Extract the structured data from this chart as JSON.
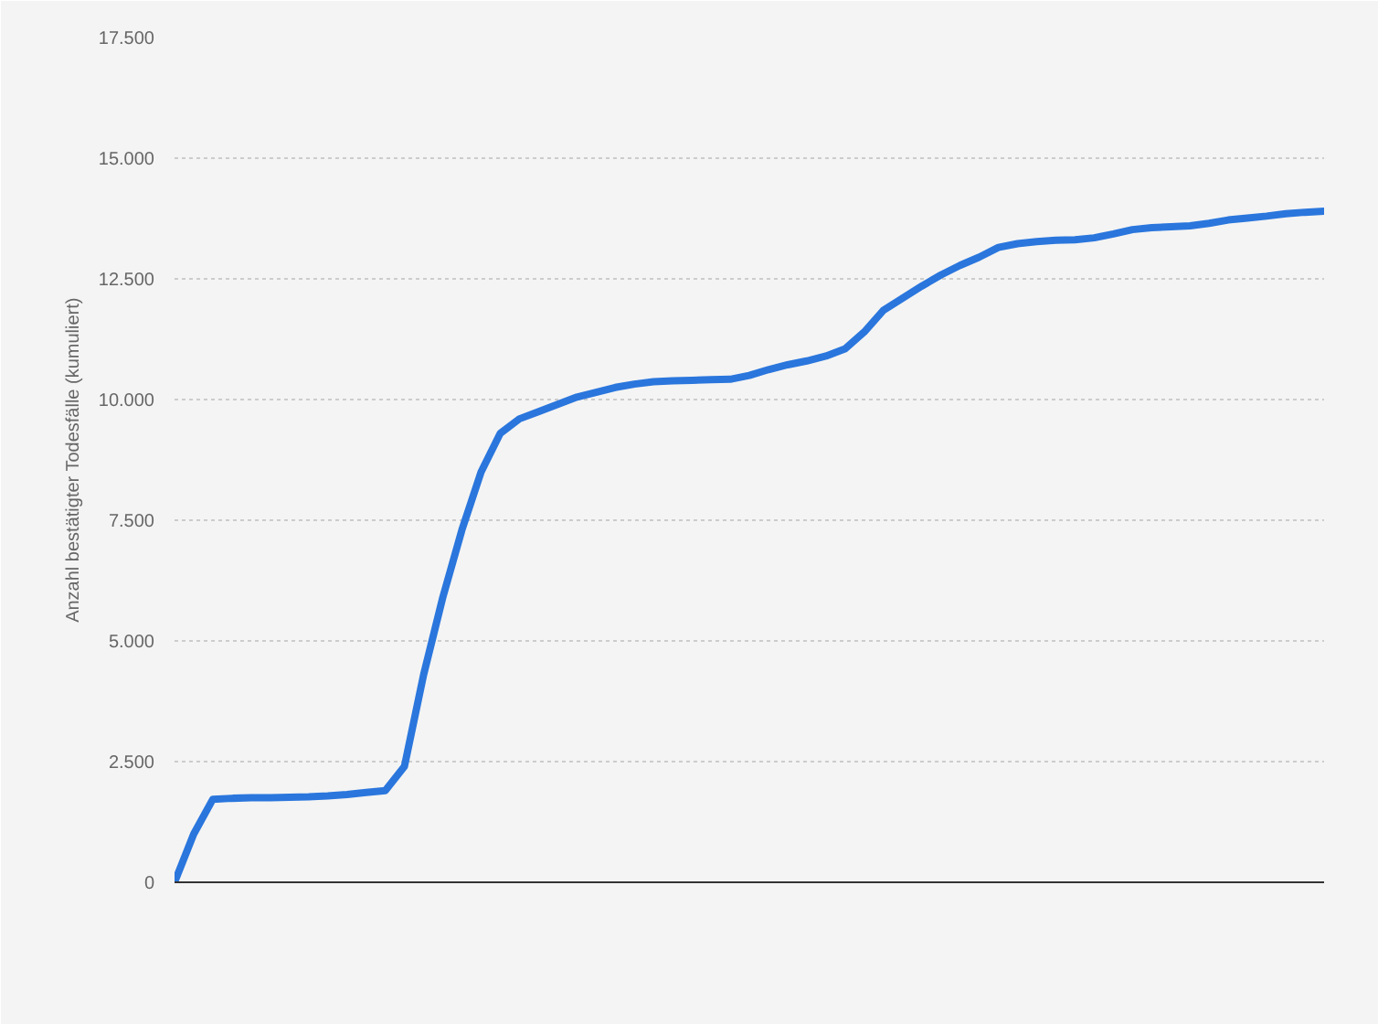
{
  "chart_data": {
    "type": "line",
    "ylabel": "Anzahl bestätigter Todesfälle (kumuliert)",
    "categories": [
      null,
      null,
      null,
      null,
      null,
      null,
      null,
      null,
      null,
      null,
      null,
      null,
      null,
      null,
      null,
      null,
      null,
      null,
      null,
      null,
      null,
      null,
      null,
      null,
      null,
      null,
      null,
      null,
      null,
      null,
      null,
      null,
      null,
      null,
      null,
      null,
      null,
      null,
      null,
      null,
      null,
      null,
      null,
      null,
      null,
      null,
      null,
      null,
      null,
      null,
      null,
      null,
      null,
      null,
      null,
      null,
      null,
      null,
      null,
      null,
      null
    ],
    "series": [
      {
        "color": "#2a76dd",
        "values": [
          0,
          1000,
          1720,
          1740,
          1750,
          1750,
          1760,
          1770,
          1790,
          1820,
          1860,
          1900,
          2400,
          4300,
          5900,
          7300,
          8500,
          9300,
          9600,
          9750,
          9900,
          10050,
          10150,
          10250,
          10320,
          10370,
          10390,
          10400,
          10410,
          10420,
          10500,
          10620,
          10720,
          10800,
          10900,
          11050,
          11400,
          11850,
          12100,
          12350,
          12580,
          12780,
          12950,
          13150,
          13230,
          13270,
          13300,
          13310,
          13350,
          13430,
          13520,
          13560,
          13580,
          13600,
          13650,
          13720,
          13760,
          13800,
          13850,
          13880,
          13900
        ]
      }
    ],
    "ylim": [
      0,
      17500
    ],
    "yticks": [
      {
        "value": 0,
        "label": "0"
      },
      {
        "value": 2500,
        "label": "2.500"
      },
      {
        "value": 5000,
        "label": "5.000"
      },
      {
        "value": 7500,
        "label": "7.500"
      },
      {
        "value": 10000,
        "label": "10.000"
      },
      {
        "value": 12500,
        "label": "12.500"
      },
      {
        "value": 15000,
        "label": "15.000"
      },
      {
        "value": 17500,
        "label": "17.500"
      }
    ],
    "grid": "y",
    "marker": "none",
    "line_style": "solid",
    "tick_labels": "y"
  }
}
